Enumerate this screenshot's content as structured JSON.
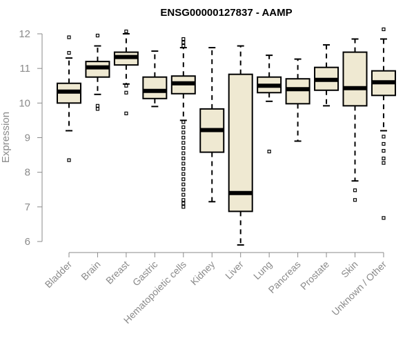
{
  "chart_data": {
    "type": "box",
    "title": "ENSG00000127837 - AAMP",
    "xlabel": "",
    "ylabel": "Expression",
    "ylim": [
      6,
      12
    ],
    "yticks": [
      6,
      7,
      8,
      9,
      10,
      11,
      12
    ],
    "grid": false,
    "legend": "none",
    "colors": {
      "box_fill": "#efe9d2",
      "stroke": "#000000",
      "axis": "#8a8a8a",
      "title": "#000000"
    },
    "categories": [
      "Bladder",
      "Brain",
      "Breast",
      "Gastric",
      "Hematopoietic cells",
      "Kidney",
      "Liver",
      "Lung",
      "Pancreas",
      "Prostate",
      "Skin",
      "Unknown / Other"
    ],
    "boxes": [
      {
        "category": "Bladder",
        "whisker_low": 9.2,
        "q1": 10.0,
        "median": 10.33,
        "q3": 10.57,
        "whisker_high": 11.3,
        "outliers": [
          8.35,
          11.45,
          11.9
        ]
      },
      {
        "category": "Brain",
        "whisker_low": 10.25,
        "q1": 10.75,
        "median": 11.03,
        "q3": 11.2,
        "whisker_high": 11.65,
        "outliers": [
          9.83,
          9.92,
          11.95
        ]
      },
      {
        "category": "Breast",
        "whisker_low": 10.55,
        "q1": 11.1,
        "median": 11.33,
        "q3": 11.47,
        "whisker_high": 12.0,
        "outliers": [
          9.7,
          10.3,
          10.5,
          12.07
        ]
      },
      {
        "category": "Gastric",
        "whisker_low": 9.9,
        "q1": 10.13,
        "median": 10.35,
        "q3": 10.75,
        "whisker_high": 11.5,
        "outliers": []
      },
      {
        "category": "Hematopoietic cells",
        "whisker_low": 9.5,
        "q1": 10.27,
        "median": 10.57,
        "q3": 10.78,
        "whisker_high": 11.6,
        "outliers": [
          7.0,
          7.1,
          7.2,
          7.35,
          7.5,
          7.65,
          7.8,
          7.95,
          8.1,
          8.25,
          8.4,
          8.55,
          8.7,
          8.85,
          9.0,
          9.15,
          9.3,
          9.45,
          11.65,
          11.75,
          11.85
        ]
      },
      {
        "category": "Kidney",
        "whisker_low": 7.15,
        "q1": 8.58,
        "median": 9.22,
        "q3": 9.83,
        "whisker_high": 11.6,
        "outliers": []
      },
      {
        "category": "Liver",
        "whisker_low": 5.9,
        "q1": 6.87,
        "median": 7.4,
        "q3": 10.83,
        "whisker_high": 11.65,
        "outliers": []
      },
      {
        "category": "Lung",
        "whisker_low": 10.05,
        "q1": 10.3,
        "median": 10.5,
        "q3": 10.75,
        "whisker_high": 11.38,
        "outliers": [
          8.6
        ]
      },
      {
        "category": "Pancreas",
        "whisker_low": 8.9,
        "q1": 9.98,
        "median": 10.4,
        "q3": 10.7,
        "whisker_high": 11.27,
        "outliers": []
      },
      {
        "category": "Prostate",
        "whisker_low": 9.92,
        "q1": 10.37,
        "median": 10.67,
        "q3": 11.03,
        "whisker_high": 11.68,
        "outliers": []
      },
      {
        "category": "Skin",
        "whisker_low": 7.75,
        "q1": 9.92,
        "median": 10.43,
        "q3": 11.47,
        "whisker_high": 11.85,
        "outliers": [
          7.2,
          7.48
        ]
      },
      {
        "category": "Unknown / Other",
        "whisker_low": 9.2,
        "q1": 10.22,
        "median": 10.6,
        "q3": 10.93,
        "whisker_high": 11.85,
        "outliers": [
          6.68,
          8.27,
          8.4,
          8.62,
          8.82,
          9.03,
          12.13
        ]
      }
    ]
  }
}
